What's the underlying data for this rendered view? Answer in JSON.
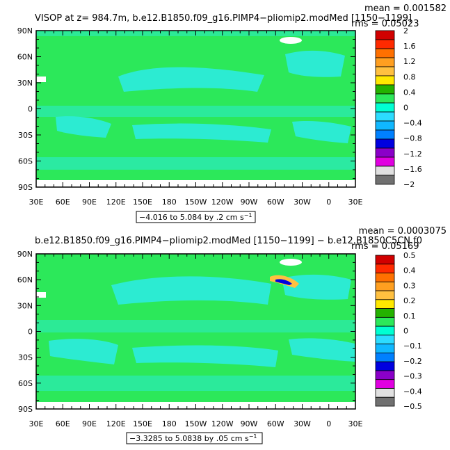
{
  "chart_data": [
    {
      "type": "heatmap",
      "title": "VISOP at z= 984.7m, b.e12.B1850.f09_g16.PIMP4−pliomip2.modMed [1150−1199]",
      "mean_label": "mean = 0.001582",
      "rms_label": "rms = 0.05023",
      "range_label": "−4.016 to 5.084 by .2 cm s",
      "range_sup": "−1",
      "xticks": [
        "30E",
        "60E",
        "90E",
        "120E",
        "150E",
        "180",
        "150W",
        "120W",
        "90W",
        "60W",
        "30W",
        "0",
        "30E"
      ],
      "yticks": [
        "90N",
        "60N",
        "30N",
        "0",
        "30S",
        "60S",
        "90S"
      ],
      "xlim": [
        30,
        390
      ],
      "ylim": [
        -90,
        90
      ],
      "colorbar_labels": [
        "2",
        "1.6",
        "1.2",
        "0.8",
        "0.4",
        "0",
        "−0.4",
        "−0.8",
        "−1.2",
        "−1.6",
        "−2"
      ],
      "colors": [
        "#d10000",
        "#ff2a00",
        "#ff7000",
        "#ff9f20",
        "#ffc040",
        "#ffe800",
        "#24b200",
        "#2ce85a",
        "#00ffd2",
        "#2cdcff",
        "#10b8ff",
        "#0080ff",
        "#0000e0",
        "#8a00c8",
        "#e000e0",
        "#e0e0e0",
        "#707070"
      ],
      "dominant_color": "#2ce85a",
      "secondary_color": "#2cebd2"
    },
    {
      "type": "heatmap",
      "title": "b.e12.B1850.f09_g16.PIMP4−pliomip2.modMed [1150−1199] − b.e12.B1850C5CN.f0",
      "mean_label": "mean = 0.0003075",
      "rms_label": "rms = 0.05169",
      "range_label": "−3.3285 to 5.0838 by .05 cm s",
      "range_sup": "−1",
      "xticks": [
        "30E",
        "60E",
        "90E",
        "120E",
        "150E",
        "180",
        "150W",
        "120W",
        "90W",
        "60W",
        "30W",
        "0",
        "30E"
      ],
      "yticks": [
        "90N",
        "60N",
        "30N",
        "0",
        "30S",
        "60S",
        "90S"
      ],
      "xlim": [
        30,
        390
      ],
      "ylim": [
        -90,
        90
      ],
      "colorbar_labels": [
        "0.5",
        "0.4",
        "0.3",
        "0.2",
        "0.1",
        "0",
        "−0.1",
        "−0.2",
        "−0.3",
        "−0.4",
        "−0.5"
      ],
      "colors": [
        "#d10000",
        "#ff2a00",
        "#ff7000",
        "#ff9f20",
        "#ffc040",
        "#ffe800",
        "#24b200",
        "#2ce85a",
        "#00ffd2",
        "#2cdcff",
        "#10b8ff",
        "#0080ff",
        "#0000e0",
        "#8a00c8",
        "#e000e0",
        "#e0e0e0",
        "#707070"
      ],
      "dominant_color": "#2ce85a",
      "secondary_color": "#2cebd2"
    }
  ]
}
